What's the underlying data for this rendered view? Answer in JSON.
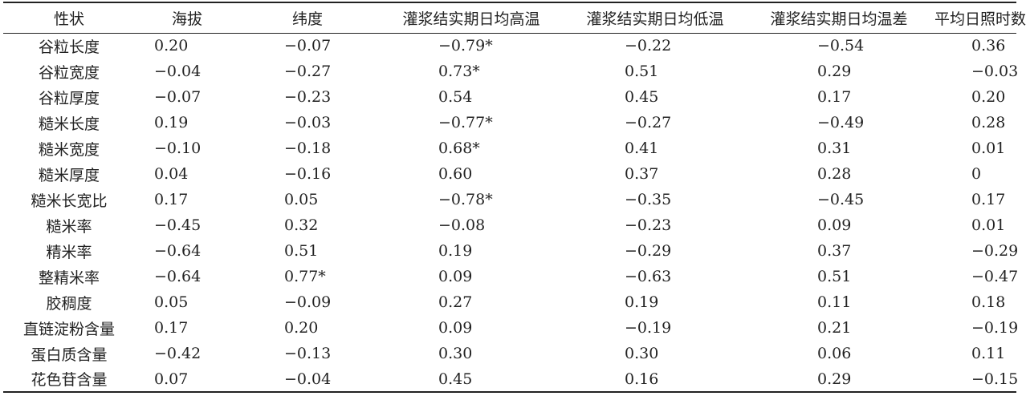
{
  "table": {
    "headers": [
      "性状",
      "海拔",
      "纬度",
      "灌浆结实期日均高温",
      "灌浆结实期日均低温",
      "灌浆结实期日均温差",
      "平均日照时数"
    ],
    "rows": [
      [
        "谷粒长度",
        "0.20",
        "−0.07",
        "−0.79*",
        "−0.22",
        "−0.54",
        "0.36"
      ],
      [
        "谷粒宽度",
        "−0.04",
        "−0.27",
        "0.73*",
        "0.51",
        "0.29",
        "−0.03"
      ],
      [
        "谷粒厚度",
        "−0.07",
        "−0.23",
        "0.54",
        "0.45",
        "0.17",
        "0.20"
      ],
      [
        "糙米长度",
        "0.19",
        "−0.03",
        "−0.77*",
        "−0.27",
        "−0.49",
        "0.28"
      ],
      [
        "糙米宽度",
        "−0.10",
        "−0.18",
        "0.68*",
        "0.41",
        "0.31",
        "0.01"
      ],
      [
        "糙米厚度",
        "0.04",
        "−0.16",
        "0.60",
        "0.37",
        "0.28",
        "0"
      ],
      [
        "糙米长宽比",
        "0.17",
        "0.05",
        "−0.78*",
        "−0.35",
        "−0.45",
        "0.17"
      ],
      [
        "糙米率",
        "−0.45",
        "0.32",
        "−0.08",
        "−0.23",
        "0.09",
        "0.01"
      ],
      [
        "精米率",
        "−0.64",
        "0.51",
        "0.19",
        "−0.29",
        "0.37",
        "−0.29"
      ],
      [
        "整精米率",
        "−0.64",
        "0.77*",
        "0.09",
        "−0.63",
        "0.51",
        "−0.47"
      ],
      [
        "胶稠度",
        "0.05",
        "−0.09",
        "0.27",
        "0.19",
        "0.11",
        "0.18"
      ],
      [
        "直链淀粉含量",
        "0.17",
        "0.20",
        "0.09",
        "−0.19",
        "0.21",
        "−0.19"
      ],
      [
        "蛋白质含量",
        "−0.42",
        "−0.13",
        "0.30",
        "0.30",
        "0.06",
        "0.11"
      ],
      [
        "花色苷含量",
        "0.07",
        "−0.04",
        "0.45",
        "0.16",
        "0.29",
        "−0.15"
      ]
    ]
  }
}
